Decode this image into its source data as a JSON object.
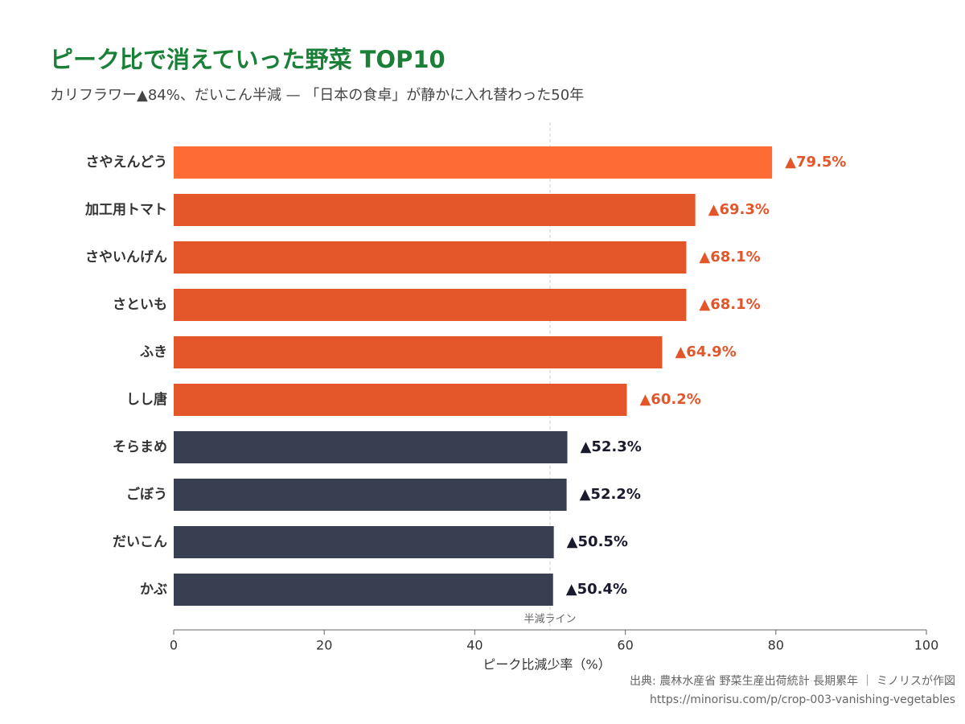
{
  "chart_data": {
    "type": "hbar",
    "title": "ピーク比で消えていった野菜 TOP10",
    "subtitle": "カリフラワー▲84%、だいこん半減 — 「日本の食卓」が静かに入れ替わった50年",
    "categories": [
      "さやえんどう",
      "加工用トマト",
      "さやいんげん",
      "さといも",
      "ふき",
      "しし唐",
      "そらまめ",
      "ごぼう",
      "だいこん",
      "かぶ"
    ],
    "values": [
      79.5,
      69.3,
      68.1,
      68.1,
      64.9,
      60.2,
      52.3,
      52.2,
      50.5,
      50.4
    ],
    "value_labels": [
      "▲79.5%",
      "▲69.3%",
      "▲68.1%",
      "▲68.1%",
      "▲64.9%",
      "▲60.2%",
      "▲52.3%",
      "▲52.2%",
      "▲50.5%",
      "▲50.4%"
    ],
    "colors": [
      "#ff6b35",
      "#e2562a",
      "#e2562a",
      "#e2562a",
      "#e2562a",
      "#e2562a",
      "#373f51",
      "#373f51",
      "#373f51",
      "#373f51"
    ],
    "value_label_colors": [
      "#e2562a",
      "#e2562a",
      "#e2562a",
      "#e2562a",
      "#e2562a",
      "#e2562a",
      "#1a1a2e",
      "#1a1a2e",
      "#1a1a2e",
      "#1a1a2e"
    ],
    "xlim": [
      0,
      100
    ],
    "xticks": [
      0,
      20,
      40,
      60,
      80,
      100
    ],
    "xlabel": "ピーク比減少率（%）",
    "reference_line": {
      "value": 50,
      "label": "半減ライン"
    },
    "source": "出典: 農林水産省 野菜生産出荷統計 長期累年 ｜ ミノリスが作図",
    "url": "https://minorisu.com/p/crop-003-vanishing-vegetables"
  }
}
